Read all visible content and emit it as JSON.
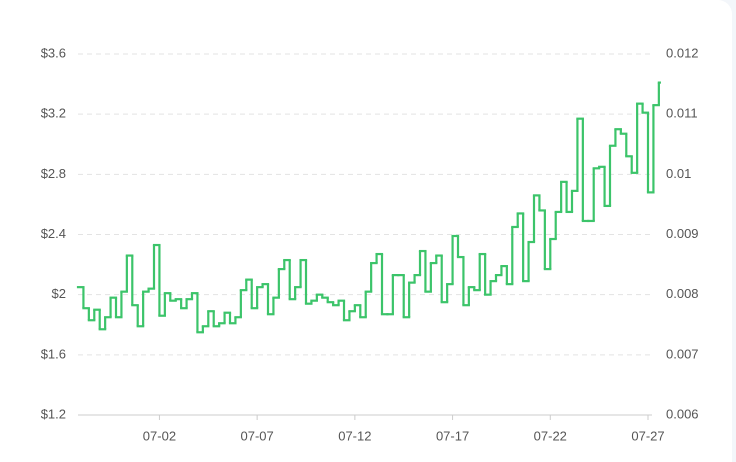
{
  "chart_data": {
    "type": "step-line",
    "categories": [
      null,
      null,
      null,
      null,
      null,
      null,
      null,
      null,
      null,
      null,
      null,
      null,
      null,
      null,
      null,
      "07-02",
      null,
      null,
      null,
      null,
      null,
      null,
      null,
      null,
      null,
      null,
      null,
      null,
      null,
      null,
      null,
      null,
      null,
      "07-07",
      null,
      null,
      null,
      null,
      null,
      null,
      null,
      null,
      null,
      null,
      null,
      null,
      null,
      null,
      null,
      null,
      null,
      "07-12",
      null,
      null,
      null,
      null,
      null,
      null,
      null,
      null,
      null,
      null,
      null,
      null,
      null,
      null,
      null,
      null,
      null,
      "07-17",
      null,
      null,
      null,
      null,
      null,
      null,
      null,
      null,
      null,
      null,
      null,
      null,
      null,
      null,
      null,
      null,
      null,
      "07-22",
      null,
      null,
      null,
      null,
      null,
      null,
      null,
      null,
      null,
      null,
      null,
      null,
      null,
      null,
      null,
      null,
      null,
      "07-27",
      null,
      null
    ],
    "series": [
      {
        "color": "#3cc46a",
        "values": [
          2.05,
          1.91,
          1.83,
          1.9,
          1.77,
          1.85,
          1.98,
          1.85,
          2.02,
          2.26,
          1.93,
          1.79,
          2.02,
          2.04,
          2.33,
          1.86,
          2.01,
          1.96,
          1.97,
          1.91,
          1.97,
          2.01,
          1.75,
          1.79,
          1.89,
          1.79,
          1.81,
          1.88,
          1.81,
          1.85,
          2.03,
          2.1,
          1.91,
          2.05,
          2.07,
          1.87,
          1.98,
          2.17,
          2.23,
          1.97,
          2.05,
          2.23,
          1.94,
          1.96,
          2.0,
          1.98,
          1.95,
          1.93,
          1.96,
          1.83,
          1.89,
          1.93,
          1.85,
          2.02,
          2.21,
          2.27,
          1.87,
          1.87,
          2.13,
          2.13,
          1.85,
          2.08,
          2.13,
          2.29,
          2.02,
          2.21,
          2.26,
          1.95,
          2.07,
          2.39,
          2.25,
          1.93,
          2.05,
          2.03,
          2.27,
          2.0,
          2.09,
          2.13,
          2.19,
          2.07,
          2.45,
          2.54,
          2.09,
          2.35,
          2.66,
          2.56,
          2.17,
          2.37,
          2.55,
          2.75,
          2.55,
          2.69,
          3.17,
          2.49,
          2.49,
          2.84,
          2.85,
          2.59,
          2.99,
          3.1,
          3.07,
          2.92,
          2.81,
          3.27,
          3.21,
          2.68,
          3.26,
          3.41
        ]
      }
    ],
    "ylim": [
      1.2,
      3.6
    ],
    "yticks": [
      {
        "value": 1.2,
        "label": "$1.2"
      },
      {
        "value": 1.6,
        "label": "$1.6"
      },
      {
        "value": 2,
        "label": "$2"
      },
      {
        "value": 2.4,
        "label": "$2.4"
      },
      {
        "value": 2.8,
        "label": "$2.8"
      },
      {
        "value": 3.2,
        "label": "$3.2"
      },
      {
        "value": 3.6,
        "label": "$3.6"
      }
    ],
    "y2lim": [
      0.006,
      0.012
    ],
    "y2ticks": [
      0.006,
      0.007,
      0.008,
      0.009,
      0.01,
      0.011,
      0.012
    ],
    "grid": true
  }
}
